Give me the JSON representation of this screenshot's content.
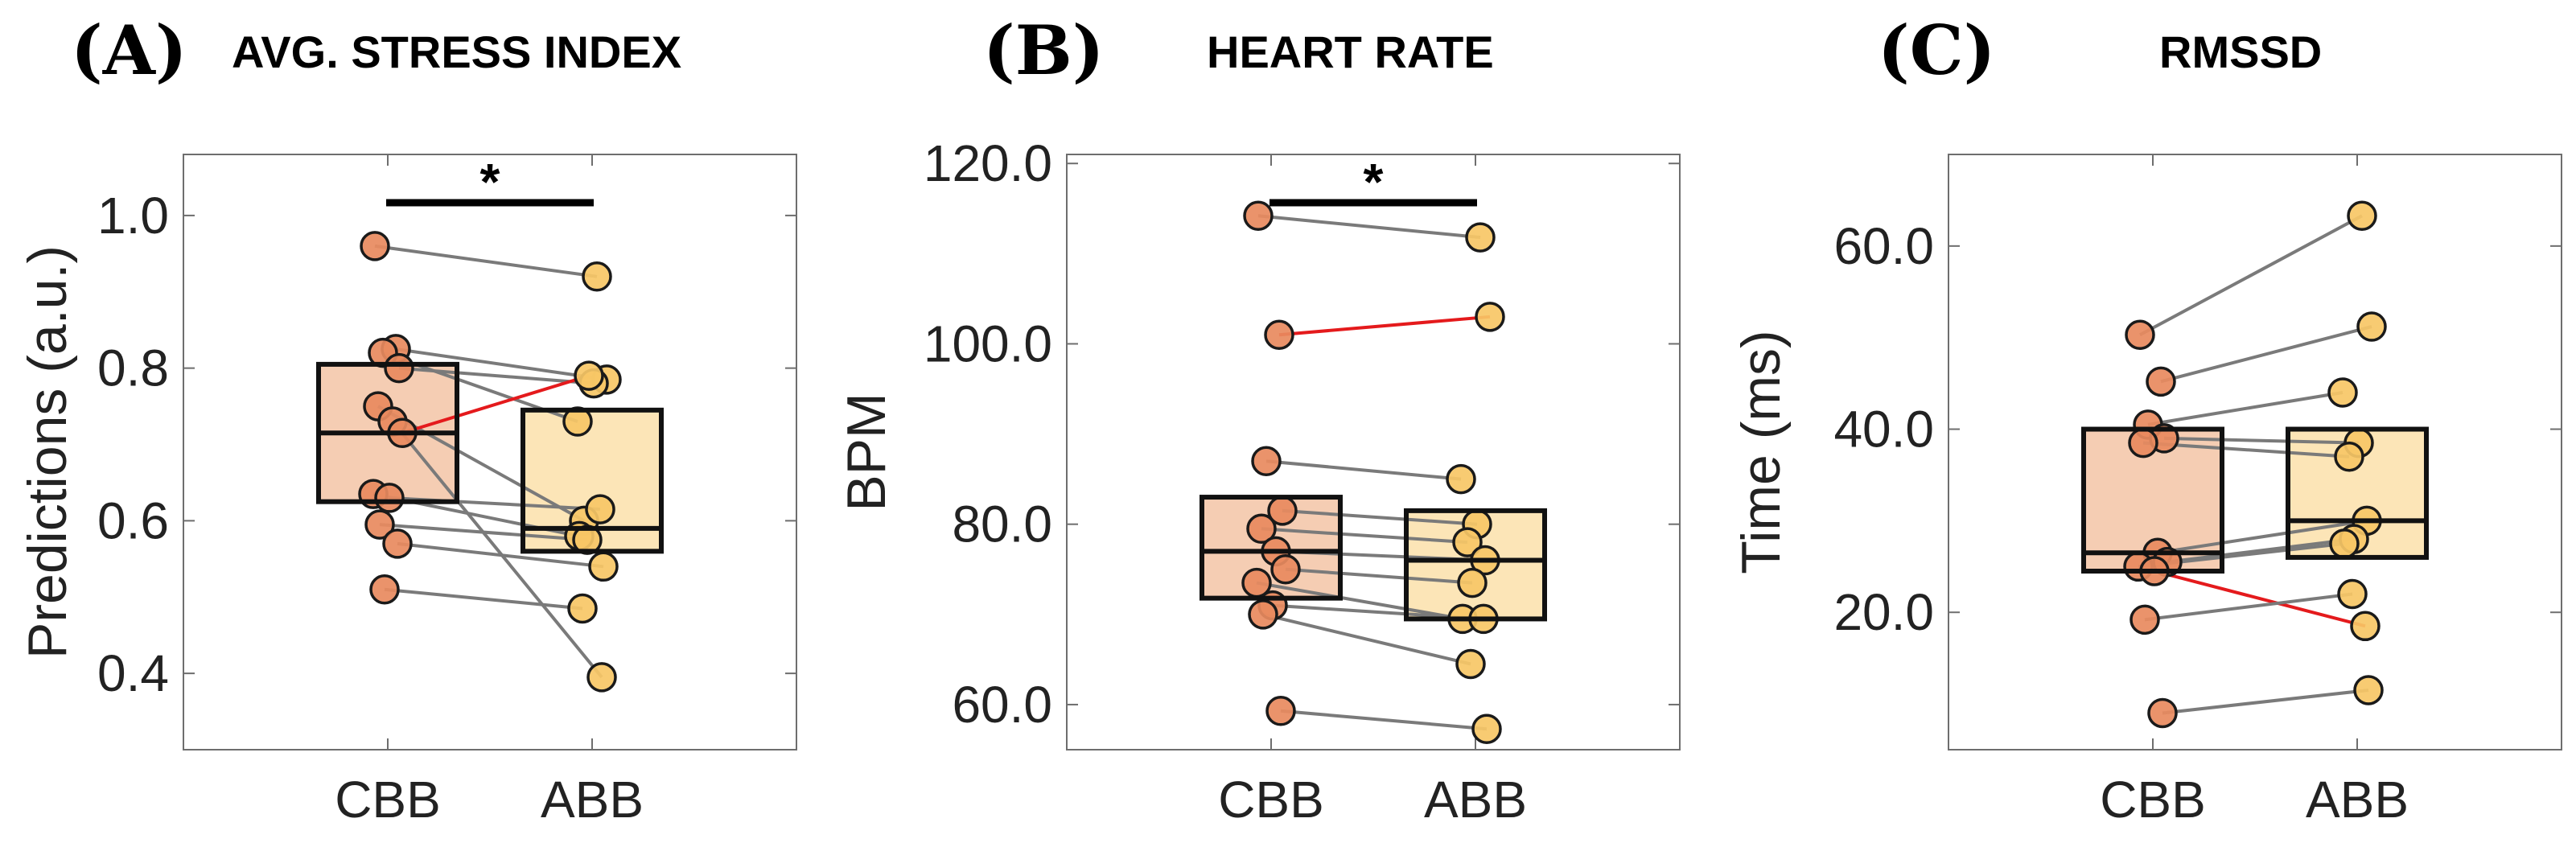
{
  "chart_data": [
    {
      "type": "box-paired",
      "panel_label": "(A)",
      "title": "AVG. STRESS INDEX",
      "ylabel": "Predictions (a.u.)",
      "ylim": [
        0.3,
        1.08
      ],
      "yticks": [
        0.4,
        0.6,
        0.8,
        1.0
      ],
      "ytick_labels": [
        "0.4",
        "0.6",
        "0.8",
        "1.0"
      ],
      "categories": [
        "CBB",
        "ABB"
      ],
      "significance": "*",
      "box_colors": [
        "#f3c4a6",
        "#fbe0aa"
      ],
      "point_colors": [
        "#e88a5e",
        "#f7c766"
      ],
      "line_color": "#7a7a7a",
      "highlight_color": "#e41a1c",
      "boxes": [
        {
          "q1": 0.625,
          "median": 0.715,
          "q3": 0.805
        },
        {
          "q1": 0.56,
          "median": 0.59,
          "q3": 0.745
        }
      ],
      "pairs": [
        {
          "cbb": 0.96,
          "abb": 0.92
        },
        {
          "cbb": 0.825,
          "abb": 0.785
        },
        {
          "cbb": 0.82,
          "abb": 0.73
        },
        {
          "cbb": 0.8,
          "abb": 0.78
        },
        {
          "cbb": 0.75,
          "abb": 0.6
        },
        {
          "cbb": 0.73,
          "abb": 0.395
        },
        {
          "cbb": 0.715,
          "abb": 0.79,
          "highlight": true
        },
        {
          "cbb": 0.635,
          "abb": 0.58
        },
        {
          "cbb": 0.63,
          "abb": 0.615
        },
        {
          "cbb": 0.595,
          "abb": 0.575
        },
        {
          "cbb": 0.57,
          "abb": 0.54
        },
        {
          "cbb": 0.51,
          "abb": 0.485
        }
      ]
    },
    {
      "type": "box-paired",
      "panel_label": "(B)",
      "title": "HEART RATE",
      "ylabel": "BPM",
      "ylim": [
        55,
        121
      ],
      "yticks": [
        60,
        80,
        100,
        120
      ],
      "ytick_labels": [
        "60.0",
        "80.0",
        "100.0",
        "120.0"
      ],
      "categories": [
        "CBB",
        "ABB"
      ],
      "significance": "*",
      "box_colors": [
        "#f3c4a6",
        "#fbe0aa"
      ],
      "point_colors": [
        "#e88a5e",
        "#f7c766"
      ],
      "line_color": "#7a7a7a",
      "highlight_color": "#e41a1c",
      "boxes": [
        {
          "q1": 71.8,
          "median": 77.0,
          "q3": 83.0
        },
        {
          "q1": 69.5,
          "median": 76.0,
          "q3": 81.5
        }
      ],
      "pairs": [
        {
          "cbb": 114.2,
          "abb": 111.8
        },
        {
          "cbb": 101.0,
          "abb": 103.0,
          "highlight": true
        },
        {
          "cbb": 87.0,
          "abb": 85.0
        },
        {
          "cbb": 81.5,
          "abb": 80.0
        },
        {
          "cbb": 79.5,
          "abb": 78.0
        },
        {
          "cbb": 77.0,
          "abb": 76.0
        },
        {
          "cbb": 75.0,
          "abb": 73.5
        },
        {
          "cbb": 73.5,
          "abb": 69.5
        },
        {
          "cbb": 71.0,
          "abb": 69.5
        },
        {
          "cbb": 70.0,
          "abb": 64.5
        },
        {
          "cbb": 59.3,
          "abb": 57.3
        }
      ]
    },
    {
      "type": "box-paired",
      "panel_label": "(C)",
      "title": "RMSSD",
      "ylabel": "Time (ms)",
      "ylim": [
        5,
        70
      ],
      "yticks": [
        20,
        40,
        60
      ],
      "ytick_labels": [
        "20.0",
        "40.0",
        "60.0"
      ],
      "categories": [
        "CBB",
        "ABB"
      ],
      "significance": "",
      "box_colors": [
        "#f3c4a6",
        "#fbe0aa"
      ],
      "point_colors": [
        "#e88a5e",
        "#f7c766"
      ],
      "line_color": "#7a7a7a",
      "highlight_color": "#e41a1c",
      "boxes": [
        {
          "q1": 24.5,
          "median": 26.5,
          "q3": 40.0
        },
        {
          "q1": 26.0,
          "median": 30.0,
          "q3": 40.0
        }
      ],
      "pairs": [
        {
          "cbb": 50.3,
          "abb": 63.3
        },
        {
          "cbb": 45.2,
          "abb": 51.2
        },
        {
          "cbb": 40.5,
          "abb": 44.0
        },
        {
          "cbb": 39.0,
          "abb": 38.5
        },
        {
          "cbb": 38.5,
          "abb": 37.0
        },
        {
          "cbb": 26.5,
          "abb": 30.0
        },
        {
          "cbb": 25.5,
          "abb": 28.0
        },
        {
          "cbb": 25.0,
          "abb": 27.5
        },
        {
          "cbb": 24.5,
          "abb": 18.5,
          "highlight": true
        },
        {
          "cbb": 19.2,
          "abb": 22.0
        },
        {
          "cbb": 9.0,
          "abb": 11.5
        }
      ]
    }
  ]
}
